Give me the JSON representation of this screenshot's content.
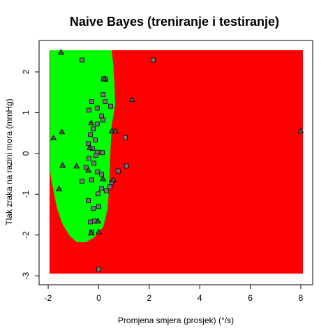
{
  "chart_data": {
    "type": "scatter",
    "title": "Naive Bayes (treniranje i testiranje)",
    "x_label": "Promjena smjera (prosjek) (°/s)",
    "y_label": "Tlak zraka na razini mora (mmHg)",
    "xlim": [
      -2.36,
      8.47
    ],
    "ylim": [
      -3.22,
      2.77
    ],
    "xticks": [
      -2,
      0,
      2,
      4,
      6,
      8
    ],
    "yticks": [
      -3,
      -2,
      -1,
      0,
      1,
      2
    ],
    "series": [
      {
        "marker": "square",
        "color": "#777777",
        "x": [
          -0.66,
          2.15,
          0.19,
          0.28,
          0.17,
          -0.28,
          0.25,
          -0.06,
          0.47,
          -0.39,
          0.11,
          0.17,
          -0.06,
          -0.22,
          1.05,
          -0.33,
          -0.14,
          -0.41,
          -0.25,
          -0.06,
          0.14,
          -0.11,
          -0.39,
          -0.19,
          -0.5,
          -0.06,
          1.1,
          0.77,
          0.11,
          -0.28,
          0.5,
          -0.66,
          0.11,
          0.44,
          0.3,
          -0.03,
          -0.41,
          -0.22,
          0.0,
          -0.33,
          -0.17,
          -0.28,
          0.0
        ],
        "values": [
          2.29,
          2.29,
          1.83,
          1.82,
          1.44,
          1.27,
          1.27,
          1.11,
          1.16,
          1.06,
          0.92,
          0.82,
          0.72,
          0.6,
          0.39,
          0.46,
          0.33,
          0.24,
          0.12,
          0.03,
          0.02,
          -0.05,
          -0.12,
          -0.24,
          -0.34,
          -0.45,
          -0.31,
          -0.43,
          -0.51,
          -0.65,
          -0.72,
          -0.68,
          -0.86,
          -0.82,
          -0.92,
          -0.99,
          -1.16,
          -1.35,
          -1.3,
          -1.68,
          -1.66,
          -1.93,
          -2.84
        ]
      },
      {
        "marker": "triangle",
        "color": "#555555",
        "x": [
          -1.49,
          0.22,
          1.32,
          8.0,
          -1.79,
          -1.46,
          -1.43,
          -0.88,
          0.52,
          0.66,
          -0.3,
          -0.36,
          0.17,
          -0.03,
          -0.3,
          0.0,
          -1.57,
          0.58,
          -0.41
        ],
        "values": [
          2.48,
          1.83,
          1.32,
          0.55,
          0.38,
          0.53,
          -0.29,
          -0.31,
          0.55,
          0.55,
          0.75,
          0.14,
          -0.62,
          -1.66,
          -1.95,
          -1.92,
          -0.87,
          -0.65,
          -0.41
        ]
      }
    ]
  }
}
